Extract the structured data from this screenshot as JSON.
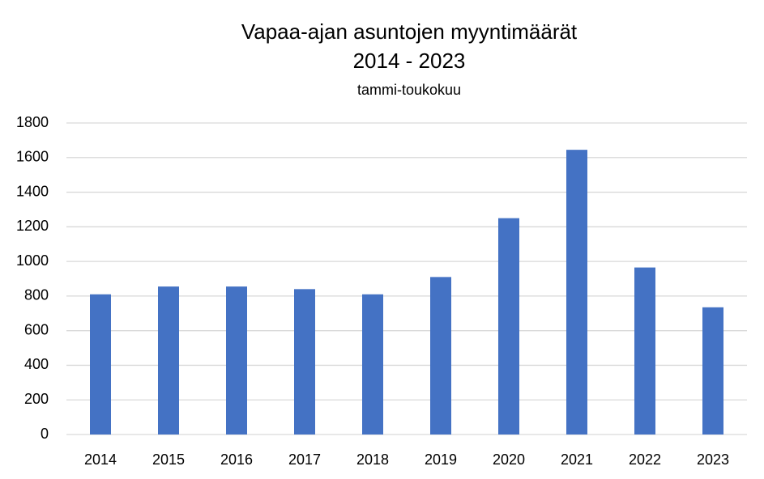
{
  "chart_data": {
    "type": "bar",
    "title": [
      "Vapaa-ajan asuntojen myyntimäärät",
      "2014 - 2023"
    ],
    "subtitle": "tammi-toukokuu",
    "categories": [
      "2014",
      "2015",
      "2016",
      "2017",
      "2018",
      "2019",
      "2020",
      "2021",
      "2022",
      "2023"
    ],
    "values": [
      810,
      855,
      855,
      840,
      810,
      910,
      1250,
      1645,
      965,
      735
    ],
    "color": "#4472c4",
    "ylim": [
      0,
      1800
    ],
    "yticks": [
      0,
      200,
      400,
      600,
      800,
      1000,
      1200,
      1400,
      1600,
      1800
    ],
    "grid": true
  }
}
